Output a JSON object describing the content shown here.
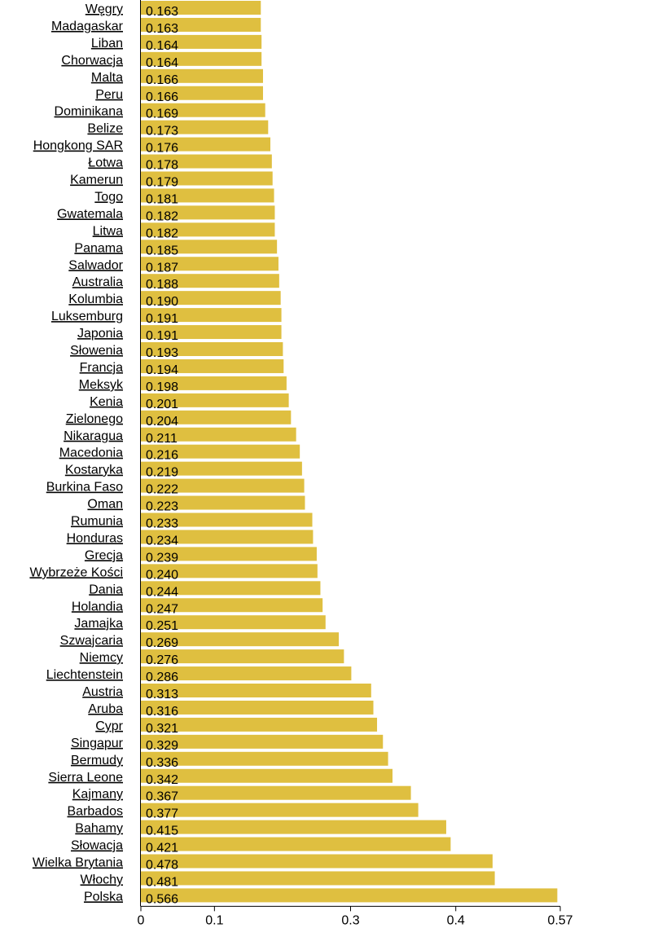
{
  "chart_data": {
    "type": "bar",
    "orientation": "horizontal",
    "bar_color": "#DFBF40",
    "xlim": [
      0,
      0.57
    ],
    "xticks": [
      {
        "value": 0,
        "label": "0"
      },
      {
        "value": 0.1,
        "label": "0.1"
      },
      {
        "value": 0.285,
        "label": "0.3"
      },
      {
        "value": 0.428,
        "label": "0.4"
      },
      {
        "value": 0.57,
        "label": "0.57"
      }
    ],
    "categories": [
      "Węgry",
      "Madagaskar",
      "Liban",
      "Chorwacja",
      "Malta",
      "Peru",
      "Dominikana",
      "Belize",
      "Hongkong SAR",
      "Łotwa",
      "Kamerun",
      "Togo",
      "Gwatemala",
      "Litwa",
      "Panama",
      "Salwador",
      "Australia",
      "Kolumbia",
      "Luksemburg",
      "Japonia",
      "Słowenia",
      "Francja",
      "Meksyk",
      "Kenia",
      "Zielonego",
      "Nikaragua",
      "Macedonia",
      "Kostaryka",
      "Burkina Faso",
      "Oman",
      "Rumunia",
      "Honduras",
      "Grecja",
      "Wybrzeże Kości",
      "Dania",
      "Holandia",
      "Jamajka",
      "Szwajcaria",
      "Niemcy",
      "Liechtenstein",
      "Austria",
      "Aruba",
      "Cypr",
      "Singapur",
      "Bermudy",
      "Sierra Leone",
      "Kajmany",
      "Barbados",
      "Bahamy",
      "Słowacja",
      "Wielka Brytania",
      "Włochy",
      "Polska"
    ],
    "values": [
      0.163,
      0.163,
      0.164,
      0.164,
      0.166,
      0.166,
      0.169,
      0.173,
      0.176,
      0.178,
      0.179,
      0.181,
      0.182,
      0.182,
      0.185,
      0.187,
      0.188,
      0.19,
      0.191,
      0.191,
      0.193,
      0.194,
      0.198,
      0.201,
      0.204,
      0.211,
      0.216,
      0.219,
      0.222,
      0.223,
      0.233,
      0.234,
      0.239,
      0.24,
      0.244,
      0.247,
      0.251,
      0.269,
      0.276,
      0.286,
      0.313,
      0.316,
      0.321,
      0.329,
      0.336,
      0.342,
      0.367,
      0.377,
      0.415,
      0.421,
      0.478,
      0.481,
      0.566
    ],
    "value_labels": [
      "0.163",
      "0.163",
      "0.164",
      "0.164",
      "0.166",
      "0.166",
      "0.169",
      "0.173",
      "0.176",
      "0.178",
      "0.179",
      "0.181",
      "0.182",
      "0.182",
      "0.185",
      "0.187",
      "0.188",
      "0.190",
      "0.191",
      "0.191",
      "0.193",
      "0.194",
      "0.198",
      "0.201",
      "0.204",
      "0.211",
      "0.216",
      "0.219",
      "0.222",
      "0.223",
      "0.233",
      "0.234",
      "0.239",
      "0.240",
      "0.244",
      "0.247",
      "0.251",
      "0.269",
      "0.276",
      "0.286",
      "0.313",
      "0.316",
      "0.321",
      "0.329",
      "0.336",
      "0.342",
      "0.367",
      "0.377",
      "0.415",
      "0.421",
      "0.478",
      "0.481",
      "0.566"
    ]
  }
}
